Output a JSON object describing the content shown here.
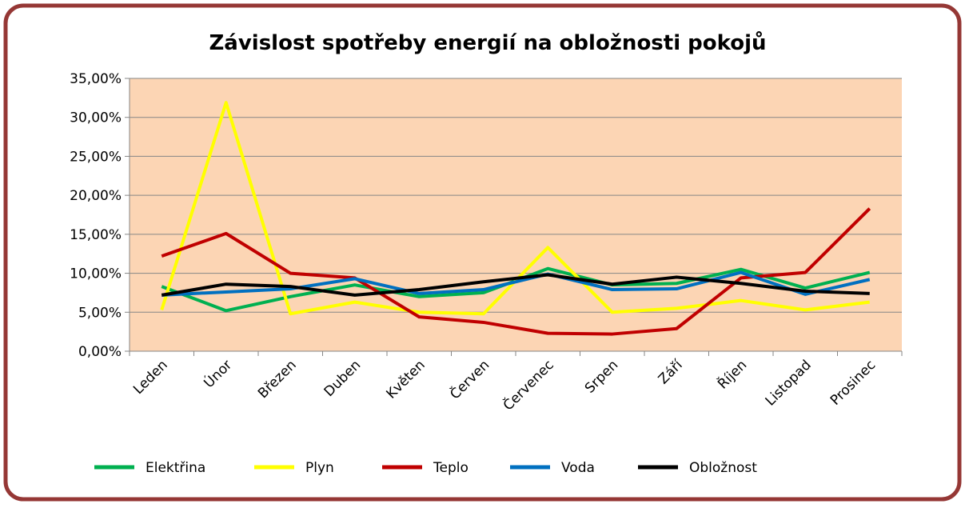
{
  "chart_data": {
    "type": "line",
    "title": "Závislost spotřeby energií na obložnosti pokojů",
    "categories": [
      "Leden",
      "Únor",
      "Březen",
      "Duben",
      "Květen",
      "Červen",
      "Červenec",
      "Srpen",
      "Září",
      "Říjen",
      "Listopad",
      "Prosinec"
    ],
    "series": [
      {
        "name": "Elektřina",
        "color": "#00b050",
        "values": [
          8.3,
          5.2,
          7.0,
          8.5,
          7.0,
          7.5,
          10.6,
          8.5,
          8.7,
          10.5,
          8.1,
          10.1
        ]
      },
      {
        "name": "Plyn",
        "color": "#ffff00",
        "values": [
          5.3,
          31.9,
          4.8,
          6.3,
          5.0,
          4.8,
          13.3,
          5.0,
          5.5,
          6.5,
          5.3,
          6.3
        ]
      },
      {
        "name": "Teplo",
        "color": "#c00000",
        "values": [
          12.2,
          15.1,
          10.0,
          9.4,
          4.4,
          3.7,
          2.3,
          2.2,
          2.9,
          9.4,
          10.1,
          18.3
        ]
      },
      {
        "name": "Voda",
        "color": "#0070c0",
        "values": [
          7.2,
          7.6,
          8.0,
          9.3,
          7.4,
          7.9,
          9.9,
          7.9,
          8.0,
          10.1,
          7.3,
          9.2
        ]
      },
      {
        "name": "Obložnost",
        "color": "#000000",
        "values": [
          7.2,
          8.6,
          8.3,
          7.2,
          7.9,
          8.9,
          9.8,
          8.6,
          9.5,
          8.7,
          7.7,
          7.4
        ]
      }
    ],
    "ylim": [
      0,
      35
    ],
    "yticks": [
      {
        "value": 0,
        "label": "0,00%"
      },
      {
        "value": 5,
        "label": "5,00%"
      },
      {
        "value": 10,
        "label": "10,00%"
      },
      {
        "value": 15,
        "label": "15,00%"
      },
      {
        "value": 20,
        "label": "20,00%"
      },
      {
        "value": 25,
        "label": "25,00%"
      },
      {
        "value": 30,
        "label": "30,00%"
      },
      {
        "value": 35,
        "label": "35,00%"
      }
    ],
    "grid": true,
    "legend": "bottom",
    "plot_background": "#fcd5b4"
  }
}
